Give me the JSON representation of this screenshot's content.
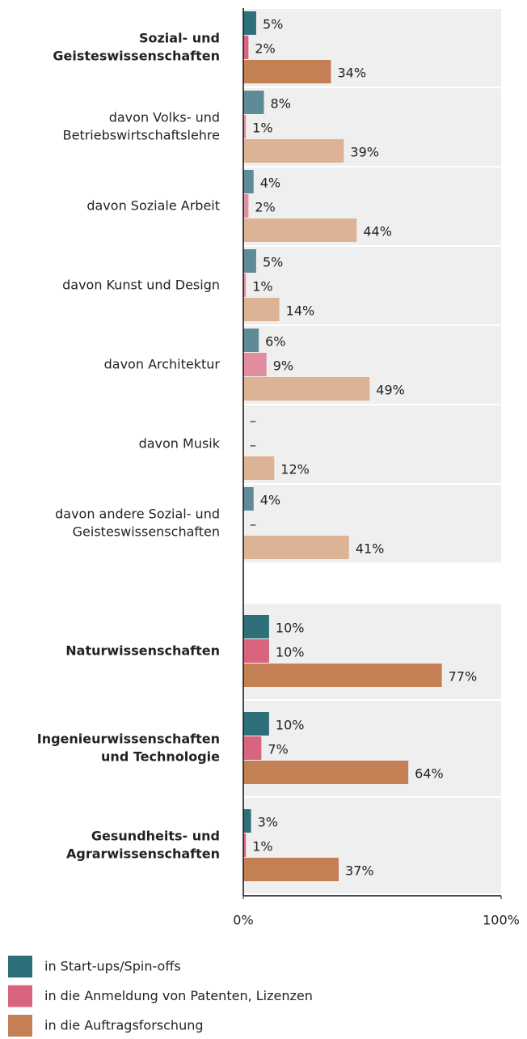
{
  "chart_data": {
    "type": "bar",
    "orientation": "horizontal",
    "categories": [
      [
        "Sozial- und",
        "Geisteswissenschaften"
      ],
      [
        "davon Volks- und",
        "Betriebswirtschaftslehre"
      ],
      [
        "davon Soziale Arbeit"
      ],
      [
        "davon Kunst und Design"
      ],
      [
        "davon Architektur"
      ],
      [
        "davon Musik"
      ],
      [
        "davon andere Sozial- und",
        "Geisteswissenschaften"
      ],
      [
        "Naturwissenschaften"
      ],
      [
        "Ingenieurwissenschaften",
        "und Technologie"
      ],
      [
        "Gesundheits- und",
        "Agrarwissenschaften"
      ]
    ],
    "emphasis": [
      true,
      false,
      false,
      false,
      false,
      false,
      false,
      true,
      true,
      true
    ],
    "series": [
      {
        "name": "in Start-ups/Spin-offs",
        "color": "#2f6f79",
        "light_color": "#5f8b97",
        "values": [
          5,
          8,
          4,
          5,
          6,
          null,
          4,
          10,
          10,
          3
        ],
        "value_labels": [
          "5%",
          "8%",
          "4%",
          "5%",
          "6%",
          "–",
          "4%",
          "10%",
          "10%",
          "3%"
        ]
      },
      {
        "name": "in die Anmeldung von Patenten, Lizenzen",
        "color": "#d9647e",
        "light_color": "#e08e9f",
        "values": [
          2,
          1,
          2,
          1,
          9,
          null,
          null,
          10,
          7,
          1
        ],
        "value_labels": [
          "2%",
          "1%",
          "2%",
          "1%",
          "9%",
          "–",
          "–",
          "10%",
          "7%",
          "1%"
        ]
      },
      {
        "name": "in die Auftragsforschung",
        "color": "#c47f55",
        "light_color": "#ddb396",
        "values": [
          34,
          39,
          44,
          14,
          49,
          12,
          41,
          77,
          64,
          37
        ],
        "value_labels": [
          "34%",
          "39%",
          "44%",
          "14%",
          "49%",
          "12%",
          "41%",
          "77%",
          "64%",
          "37%"
        ]
      }
    ],
    "xlim": [
      0,
      100
    ],
    "xticks": [
      {
        "value": 0,
        "label": "0%"
      },
      {
        "value": 100,
        "label": "100%"
      }
    ]
  }
}
